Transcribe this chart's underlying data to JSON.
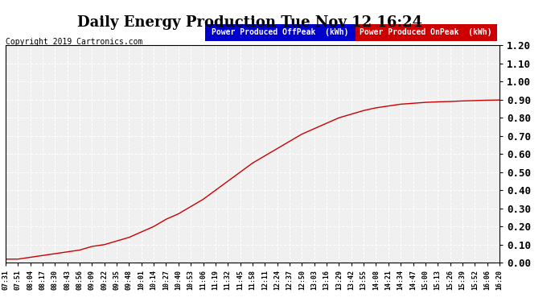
{
  "title": "Daily Energy Production Tue Nov 12 16:24",
  "copyright": "Copyright 2019 Cartronics.com",
  "legend_offpeak": "Power Produced OffPeak  (kWh)",
  "legend_onpeak": "Power Produced OnPeak  (kWh)",
  "offpeak_color": "#0000CC",
  "onpeak_color": "#CC0000",
  "line_color": "#CC0000",
  "background_color": "#FFFFFF",
  "plot_bg_color": "#F0F0F0",
  "grid_color": "#FFFFFF",
  "ylim": [
    0.0,
    1.2
  ],
  "ytick_step": 0.1,
  "x_labels": [
    "07:31",
    "07:51",
    "08:04",
    "08:17",
    "08:30",
    "08:43",
    "08:56",
    "09:09",
    "09:22",
    "09:35",
    "09:48",
    "10:01",
    "10:14",
    "10:27",
    "10:40",
    "10:53",
    "11:06",
    "11:19",
    "11:32",
    "11:45",
    "11:58",
    "12:11",
    "12:24",
    "12:37",
    "12:50",
    "13:03",
    "13:16",
    "13:29",
    "13:42",
    "13:55",
    "14:08",
    "14:21",
    "14:34",
    "14:47",
    "15:00",
    "15:13",
    "15:26",
    "15:39",
    "15:52",
    "16:06",
    "16:20"
  ],
  "y_values": [
    0.02,
    0.02,
    0.03,
    0.04,
    0.05,
    0.06,
    0.07,
    0.09,
    0.1,
    0.12,
    0.14,
    0.17,
    0.2,
    0.24,
    0.27,
    0.31,
    0.35,
    0.4,
    0.45,
    0.5,
    0.55,
    0.59,
    0.63,
    0.67,
    0.71,
    0.74,
    0.77,
    0.8,
    0.82,
    0.84,
    0.855,
    0.865,
    0.875,
    0.88,
    0.885,
    0.888,
    0.89,
    0.893,
    0.895,
    0.897,
    0.898
  ],
  "title_fontsize": 13,
  "copyright_fontsize": 7,
  "legend_fontsize": 7,
  "ytick_fontsize": 9,
  "xtick_fontsize": 6
}
